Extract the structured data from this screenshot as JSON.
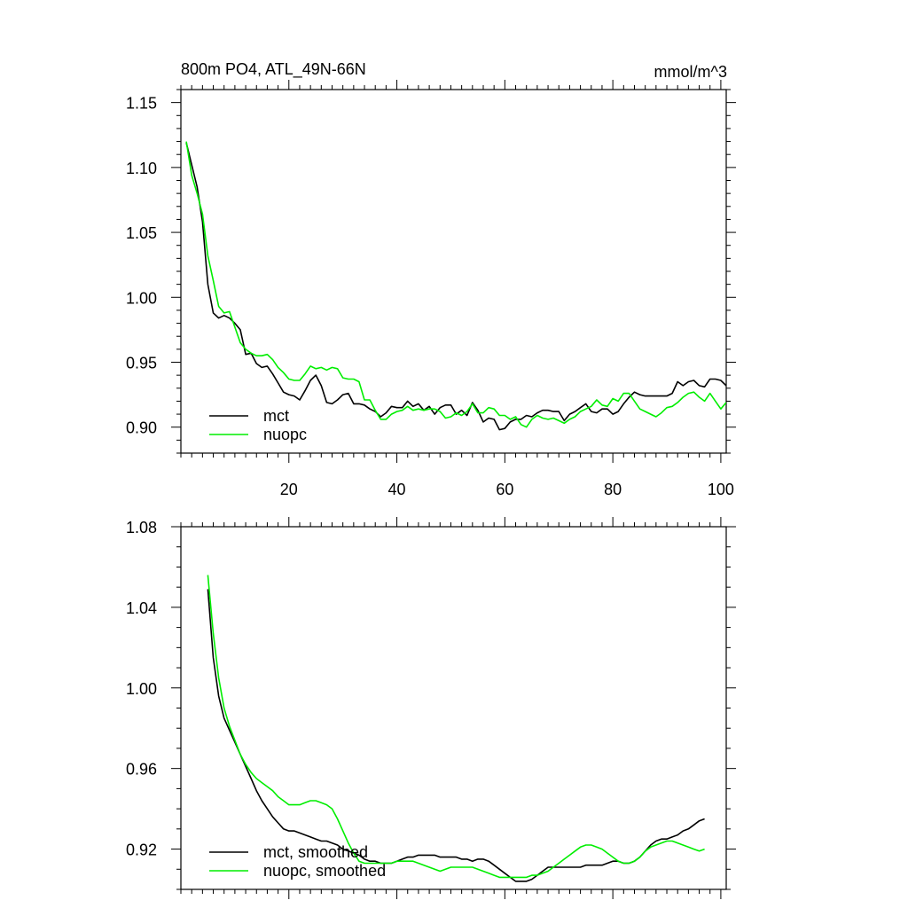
{
  "figure": {
    "title_left": "800m PO4, ATL_49N-66N",
    "title_right": "mmol/m^3"
  },
  "chart_data": [
    {
      "type": "line",
      "title": "800m PO4, ATL_49N-66N",
      "units": "mmol/m^3",
      "xlim": [
        0,
        101
      ],
      "ylim": [
        0.88,
        1.16
      ],
      "x_ticks": [
        20,
        40,
        60,
        80,
        100
      ],
      "x_tick_labels": [
        "20",
        "40",
        "60",
        "80",
        "100"
      ],
      "y_ticks": [
        0.9,
        0.95,
        1.0,
        1.05,
        1.1,
        1.15
      ],
      "y_tick_labels": [
        "0.90",
        "0.95",
        "1.00",
        "1.05",
        "1.10",
        "1.15"
      ],
      "grid": false,
      "legend_position": "bottom-left",
      "series": [
        {
          "name": "mct",
          "color": "#000000",
          "x": [
            1,
            2,
            3,
            4,
            5,
            6,
            7,
            8,
            9,
            10,
            11,
            12,
            13,
            14,
            15,
            16,
            17,
            18,
            19,
            20,
            21,
            22,
            23,
            24,
            25,
            26,
            27,
            28,
            29,
            30,
            31,
            32,
            33,
            34,
            35,
            36,
            37,
            38,
            39,
            40,
            41,
            42,
            43,
            44,
            45,
            46,
            47,
            48,
            49,
            50,
            51,
            52,
            53,
            54,
            55,
            56,
            57,
            58,
            59,
            60,
            61,
            62,
            63,
            64,
            65,
            66,
            67,
            68,
            69,
            70,
            71,
            72,
            73,
            74,
            75,
            76,
            77,
            78,
            79,
            80,
            81,
            82,
            83,
            84,
            85,
            86,
            87,
            88,
            89,
            90,
            91,
            92,
            93,
            94,
            95,
            96,
            97,
            98,
            99,
            100,
            101
          ],
          "y": [
            1.119,
            1.102,
            1.085,
            1.058,
            1.01,
            0.988,
            0.984,
            0.986,
            0.984,
            0.98,
            0.975,
            0.956,
            0.957,
            0.949,
            0.946,
            0.947,
            0.941,
            0.934,
            0.927,
            0.925,
            0.924,
            0.921,
            0.928,
            0.936,
            0.94,
            0.932,
            0.919,
            0.918,
            0.921,
            0.925,
            0.926,
            0.918,
            0.918,
            0.917,
            0.914,
            0.912,
            0.908,
            0.911,
            0.916,
            0.915,
            0.915,
            0.92,
            0.916,
            0.918,
            0.913,
            0.916,
            0.91,
            0.915,
            0.917,
            0.917,
            0.91,
            0.913,
            0.909,
            0.919,
            0.913,
            0.904,
            0.907,
            0.906,
            0.898,
            0.899,
            0.904,
            0.906,
            0.906,
            0.909,
            0.908,
            0.911,
            0.913,
            0.913,
            0.912,
            0.912,
            0.905,
            0.91,
            0.912,
            0.915,
            0.918,
            0.912,
            0.911,
            0.914,
            0.914,
            0.91,
            0.912,
            0.918,
            0.923,
            0.927,
            0.925,
            0.924,
            0.924,
            0.924,
            0.924,
            0.924,
            0.926,
            0.935,
            0.932,
            0.935,
            0.936,
            0.932,
            0.931,
            0.937,
            0.937,
            0.936,
            0.932
          ]
        },
        {
          "name": "nuopc",
          "color": "#00ee00",
          "x": [
            1,
            2,
            3,
            4,
            5,
            6,
            7,
            8,
            9,
            10,
            11,
            12,
            13,
            14,
            15,
            16,
            17,
            18,
            19,
            20,
            21,
            22,
            23,
            24,
            25,
            26,
            27,
            28,
            29,
            30,
            31,
            32,
            33,
            34,
            35,
            36,
            37,
            38,
            39,
            40,
            41,
            42,
            43,
            44,
            45,
            46,
            47,
            48,
            49,
            50,
            51,
            52,
            53,
            54,
            55,
            56,
            57,
            58,
            59,
            60,
            61,
            62,
            63,
            64,
            65,
            66,
            67,
            68,
            69,
            70,
            71,
            72,
            73,
            74,
            75,
            76,
            77,
            78,
            79,
            80,
            81,
            82,
            83,
            84,
            85,
            86,
            87,
            88,
            89,
            90,
            91,
            92,
            93,
            94,
            95,
            96,
            97,
            98,
            99,
            100,
            101
          ],
          "y": [
            1.12,
            1.094,
            1.08,
            1.064,
            1.032,
            1.013,
            0.993,
            0.988,
            0.989,
            0.977,
            0.965,
            0.96,
            0.957,
            0.955,
            0.955,
            0.956,
            0.952,
            0.946,
            0.942,
            0.937,
            0.936,
            0.936,
            0.941,
            0.947,
            0.945,
            0.946,
            0.944,
            0.946,
            0.945,
            0.938,
            0.937,
            0.937,
            0.935,
            0.921,
            0.921,
            0.913,
            0.906,
            0.906,
            0.91,
            0.912,
            0.913,
            0.916,
            0.913,
            0.914,
            0.913,
            0.914,
            0.914,
            0.912,
            0.907,
            0.908,
            0.911,
            0.909,
            0.912,
            0.918,
            0.911,
            0.911,
            0.915,
            0.914,
            0.909,
            0.909,
            0.906,
            0.908,
            0.902,
            0.9,
            0.906,
            0.909,
            0.907,
            0.906,
            0.907,
            0.905,
            0.903,
            0.906,
            0.908,
            0.912,
            0.914,
            0.916,
            0.921,
            0.917,
            0.916,
            0.922,
            0.92,
            0.926,
            0.926,
            0.92,
            0.914,
            0.912,
            0.91,
            0.908,
            0.911,
            0.915,
            0.916,
            0.919,
            0.923,
            0.926,
            0.927,
            0.923,
            0.92,
            0.926,
            0.92,
            0.914,
            0.919
          ]
        }
      ]
    },
    {
      "type": "line",
      "xlim": [
        0,
        101
      ],
      "ylim": [
        0.9,
        1.08
      ],
      "x_ticks": [
        20,
        40,
        60,
        80,
        100
      ],
      "x_tick_labels": [],
      "y_ticks": [
        0.92,
        0.96,
        1.0,
        1.04,
        1.08
      ],
      "y_tick_labels": [
        "0.92",
        "0.96",
        "1.00",
        "1.04",
        "1.08"
      ],
      "grid": false,
      "legend_position": "bottom-left",
      "series": [
        {
          "name": "mct, smoothed",
          "color": "#000000",
          "x": [
            5,
            6,
            7,
            8,
            9,
            10,
            11,
            12,
            13,
            14,
            15,
            16,
            17,
            18,
            19,
            20,
            21,
            22,
            23,
            24,
            25,
            26,
            27,
            28,
            29,
            30,
            31,
            32,
            33,
            34,
            35,
            36,
            37,
            38,
            39,
            40,
            41,
            42,
            43,
            44,
            45,
            46,
            47,
            48,
            49,
            50,
            51,
            52,
            53,
            54,
            55,
            56,
            57,
            58,
            59,
            60,
            61,
            62,
            63,
            64,
            65,
            66,
            67,
            68,
            69,
            70,
            71,
            72,
            73,
            74,
            75,
            76,
            77,
            78,
            79,
            80,
            81,
            82,
            83,
            84,
            85,
            86,
            87,
            88,
            89,
            90,
            91,
            92,
            93,
            94,
            95,
            96,
            97
          ],
          "y": [
            1.049,
            1.015,
            0.996,
            0.985,
            0.979,
            0.973,
            0.967,
            0.961,
            0.955,
            0.949,
            0.944,
            0.94,
            0.936,
            0.933,
            0.93,
            0.929,
            0.929,
            0.928,
            0.927,
            0.926,
            0.925,
            0.924,
            0.924,
            0.923,
            0.922,
            0.92,
            0.919,
            0.918,
            0.917,
            0.915,
            0.914,
            0.914,
            0.913,
            0.913,
            0.913,
            0.914,
            0.915,
            0.916,
            0.916,
            0.917,
            0.917,
            0.917,
            0.917,
            0.916,
            0.916,
            0.916,
            0.916,
            0.915,
            0.915,
            0.914,
            0.915,
            0.915,
            0.914,
            0.912,
            0.91,
            0.908,
            0.906,
            0.904,
            0.904,
            0.904,
            0.905,
            0.907,
            0.909,
            0.911,
            0.911,
            0.911,
            0.911,
            0.911,
            0.911,
            0.911,
            0.912,
            0.912,
            0.912,
            0.912,
            0.913,
            0.914,
            0.914,
            0.913,
            0.913,
            0.914,
            0.916,
            0.919,
            0.922,
            0.924,
            0.925,
            0.925,
            0.926,
            0.927,
            0.929,
            0.93,
            0.932,
            0.934,
            0.935
          ]
        },
        {
          "name": "nuopc, smoothed",
          "color": "#00ee00",
          "x": [
            5,
            6,
            7,
            8,
            9,
            10,
            11,
            12,
            13,
            14,
            15,
            16,
            17,
            18,
            19,
            20,
            21,
            22,
            23,
            24,
            25,
            26,
            27,
            28,
            29,
            30,
            31,
            32,
            33,
            34,
            35,
            36,
            37,
            38,
            39,
            40,
            41,
            42,
            43,
            44,
            45,
            46,
            47,
            48,
            49,
            50,
            51,
            52,
            53,
            54,
            55,
            56,
            57,
            58,
            59,
            60,
            61,
            62,
            63,
            64,
            65,
            66,
            67,
            68,
            69,
            70,
            71,
            72,
            73,
            74,
            75,
            76,
            77,
            78,
            79,
            80,
            81,
            82,
            83,
            84,
            85,
            86,
            87,
            88,
            89,
            90,
            91,
            92,
            93,
            94,
            95,
            96,
            97
          ],
          "y": [
            1.056,
            1.027,
            1.005,
            0.99,
            0.981,
            0.974,
            0.967,
            0.962,
            0.958,
            0.955,
            0.953,
            0.951,
            0.949,
            0.946,
            0.944,
            0.942,
            0.942,
            0.942,
            0.943,
            0.944,
            0.944,
            0.943,
            0.942,
            0.94,
            0.935,
            0.929,
            0.923,
            0.918,
            0.914,
            0.913,
            0.913,
            0.913,
            0.913,
            0.913,
            0.913,
            0.914,
            0.914,
            0.914,
            0.914,
            0.913,
            0.912,
            0.911,
            0.91,
            0.909,
            0.91,
            0.911,
            0.911,
            0.911,
            0.911,
            0.911,
            0.91,
            0.909,
            0.908,
            0.907,
            0.906,
            0.906,
            0.906,
            0.906,
            0.906,
            0.906,
            0.907,
            0.907,
            0.908,
            0.909,
            0.911,
            0.913,
            0.915,
            0.917,
            0.919,
            0.921,
            0.922,
            0.922,
            0.921,
            0.92,
            0.918,
            0.916,
            0.914,
            0.913,
            0.913,
            0.914,
            0.916,
            0.919,
            0.921,
            0.922,
            0.923,
            0.924,
            0.924,
            0.923,
            0.922,
            0.921,
            0.92,
            0.919,
            0.92
          ]
        }
      ]
    }
  ]
}
